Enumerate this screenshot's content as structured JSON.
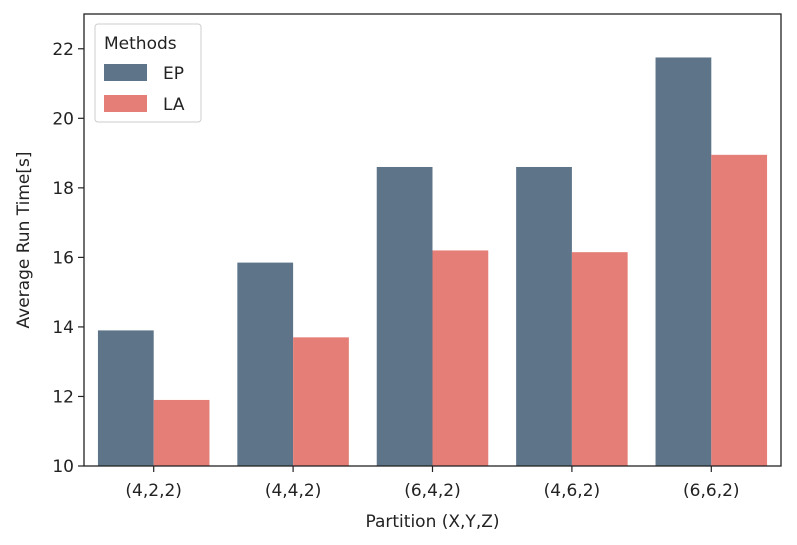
{
  "chart_data": {
    "type": "bar",
    "title": "",
    "xlabel": "Partition (X,Y,Z)",
    "ylabel": "Average Run Time[s]",
    "categories": [
      "(4,2,2)",
      "(4,4,2)",
      "(6,4,2)",
      "(4,6,2)",
      "(6,6,2)"
    ],
    "series": [
      {
        "name": "EP",
        "color": "#5d7489",
        "values": [
          13.9,
          15.85,
          18.6,
          18.6,
          21.75
        ]
      },
      {
        "name": "LA",
        "color": "#e57e77",
        "values": [
          11.9,
          13.7,
          16.2,
          16.15,
          18.95
        ]
      }
    ],
    "ylim": [
      10,
      23
    ],
    "yticks": [
      10,
      12,
      14,
      16,
      18,
      20,
      22
    ],
    "grid": false,
    "legend": {
      "title": "Methods",
      "position": "top-left"
    }
  }
}
